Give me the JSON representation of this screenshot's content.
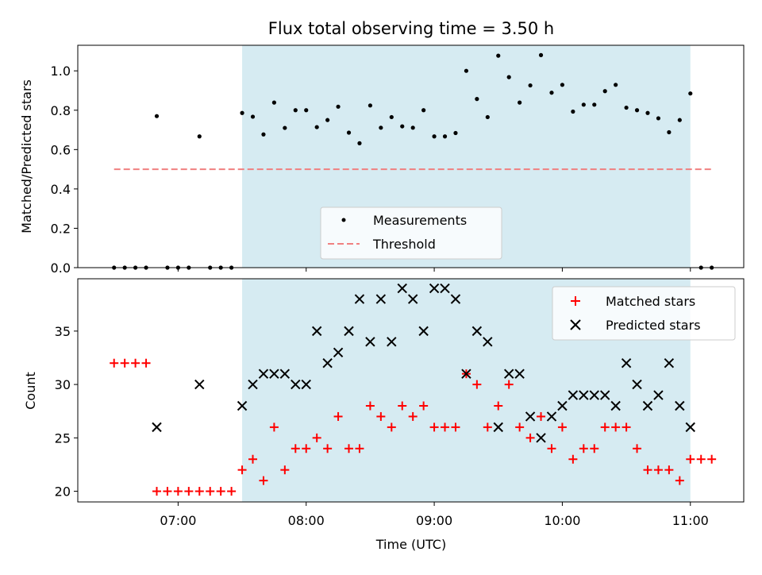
{
  "chart_data": [
    {
      "type": "scatter",
      "title": "Flux total observing time = 3.50 h",
      "xlabel": "",
      "ylabel": "Matched/Predicted stars",
      "xlim": [
        "06:13",
        "11:25"
      ],
      "ylim": [
        0,
        1.13
      ],
      "yticks": [
        "0.0",
        "0.2",
        "0.4",
        "0.6",
        "0.8",
        "1.0"
      ],
      "shaded_span": [
        "07:30",
        "11:00"
      ],
      "legend_position": "lower-center",
      "colors": {
        "span": "#add8e6",
        "threshold": "#f08080",
        "points": "#000000"
      },
      "threshold": {
        "name": "Threshold",
        "y": 0.5,
        "x_range": [
          "06:30",
          "11:10"
        ]
      },
      "series": [
        {
          "name": "Measurements",
          "x": [
            "06:30",
            "06:35",
            "06:40",
            "06:45",
            "06:50",
            "06:55",
            "07:00",
            "07:05",
            "07:10",
            "07:15",
            "07:20",
            "07:25",
            "07:30",
            "07:35",
            "07:40",
            "07:45",
            "07:50",
            "07:55",
            "08:00",
            "08:05",
            "08:10",
            "08:15",
            "08:20",
            "08:25",
            "08:30",
            "08:35",
            "08:40",
            "08:45",
            "08:50",
            "08:55",
            "09:00",
            "09:05",
            "09:10",
            "09:15",
            "09:20",
            "09:25",
            "09:30",
            "09:35",
            "09:40",
            "09:45",
            "09:50",
            "09:55",
            "10:00",
            "10:05",
            "10:10",
            "10:15",
            "10:20",
            "10:25",
            "10:30",
            "10:35",
            "10:40",
            "10:45",
            "10:50",
            "10:55",
            "11:00",
            "11:05",
            "11:10"
          ],
          "y": [
            0,
            0,
            0,
            0,
            0.77,
            0,
            0,
            0,
            0.667,
            0,
            0,
            0,
            0.786,
            0.767,
            0.677,
            0.839,
            0.71,
            0.8,
            0.8,
            0.714,
            0.75,
            0.818,
            0.686,
            0.632,
            0.824,
            0.711,
            0.765,
            0.718,
            0.711,
            0.8,
            0.667,
            0.667,
            0.684,
            1.0,
            0.857,
            0.765,
            1.077,
            0.968,
            0.839,
            0.926,
            1.08,
            0.889,
            0.929,
            0.793,
            0.828,
            0.828,
            0.897,
            0.929,
            0.813,
            0.8,
            0.786,
            0.759,
            0.688,
            0.75,
            0.885,
            0,
            0
          ]
        }
      ]
    },
    {
      "type": "scatter",
      "title": "",
      "xlabel": "Time (UTC)",
      "ylabel": "Count",
      "xlim": [
        "06:13",
        "11:25"
      ],
      "ylim": [
        19,
        39.9
      ],
      "xticks": [
        "07:00",
        "08:00",
        "09:00",
        "10:00",
        "11:00"
      ],
      "yticks": [
        "20",
        "25",
        "30",
        "35"
      ],
      "shaded_span": [
        "07:30",
        "11:00"
      ],
      "legend_position": "upper-right",
      "colors": {
        "matched": "#ff0000",
        "predicted": "#000000",
        "span": "#add8e6"
      },
      "x": [
        "06:30",
        "06:35",
        "06:40",
        "06:45",
        "06:50",
        "06:55",
        "07:00",
        "07:05",
        "07:10",
        "07:15",
        "07:20",
        "07:25",
        "07:30",
        "07:35",
        "07:40",
        "07:45",
        "07:50",
        "07:55",
        "08:00",
        "08:05",
        "08:10",
        "08:15",
        "08:20",
        "08:25",
        "08:30",
        "08:35",
        "08:40",
        "08:45",
        "08:50",
        "08:55",
        "09:00",
        "09:05",
        "09:10",
        "09:15",
        "09:20",
        "09:25",
        "09:30",
        "09:35",
        "09:40",
        "09:45",
        "09:50",
        "09:55",
        "10:00",
        "10:05",
        "10:10",
        "10:15",
        "10:20",
        "10:25",
        "10:30",
        "10:35",
        "10:40",
        "10:45",
        "10:50",
        "10:55",
        "11:00",
        "11:05",
        "11:10"
      ],
      "series": [
        {
          "name": "Matched stars",
          "marker": "plus",
          "values": [
            32,
            32,
            32,
            32,
            20,
            20,
            20,
            20,
            20,
            20,
            20,
            20,
            22,
            23,
            21,
            26,
            22,
            24,
            24,
            25,
            24,
            27,
            24,
            24,
            28,
            27,
            26,
            28,
            27,
            28,
            26,
            26,
            26,
            31,
            30,
            26,
            28,
            30,
            26,
            25,
            27,
            24,
            26,
            23,
            24,
            24,
            26,
            26,
            26,
            24,
            22,
            22,
            22,
            21,
            23,
            23,
            23
          ]
        },
        {
          "name": "Predicted stars",
          "marker": "x",
          "values": [
            null,
            null,
            null,
            null,
            26,
            null,
            null,
            null,
            30,
            null,
            null,
            null,
            28,
            30,
            31,
            31,
            31,
            30,
            30,
            35,
            32,
            33,
            35,
            38,
            34,
            38,
            34,
            39,
            38,
            35,
            39,
            39,
            38,
            31,
            35,
            34,
            26,
            31,
            31,
            27,
            25,
            27,
            28,
            29,
            29,
            29,
            29,
            28,
            32,
            30,
            28,
            29,
            32,
            28,
            26,
            null,
            null
          ]
        }
      ]
    }
  ]
}
